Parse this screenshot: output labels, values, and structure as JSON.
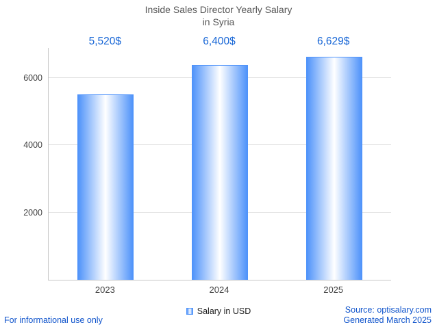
{
  "title": {
    "line1": "Inside Sales Director Yearly Salary",
    "line2": "in Syria"
  },
  "chart_data": {
    "type": "bar",
    "title": "Inside Sales Director Yearly Salary in Syria",
    "categories": [
      "2023",
      "2024",
      "2025"
    ],
    "values": [
      5520,
      6400,
      6629
    ],
    "value_labels": [
      "5,520$",
      "6,400$",
      "6,629$"
    ],
    "xlabel": "",
    "ylabel": "",
    "yticks": [
      2000,
      4000,
      6000
    ],
    "ylim": [
      0,
      6900
    ],
    "grid": true,
    "legend": {
      "label": "Salary in USD",
      "position": "bottom-center"
    }
  },
  "footer": {
    "disclaimer": "For informational use only",
    "source": "Source: optisalary.com",
    "generated": "Generated March 2025"
  },
  "colors": {
    "accent_text": "#1766d6",
    "link_text": "#1155cc",
    "bar_edge": "#4f93fa",
    "bar_center": "#ffffff",
    "legend_marker": "#4f93fa",
    "axis": "#c6c6c6",
    "grid": "#e2e2e2",
    "title_text": "#555555",
    "tick_text": "#404040"
  }
}
